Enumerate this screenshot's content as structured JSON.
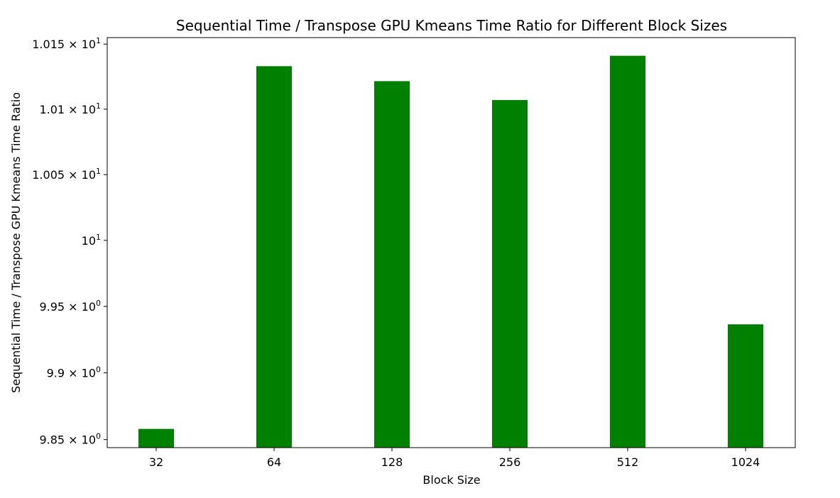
{
  "chart_data": {
    "type": "bar",
    "title": "Sequential Time / Transpose GPU Kmeans Time Ratio for Different Block Sizes",
    "xlabel": "Block Size",
    "ylabel": "Sequential Time / Transpose GPU Kmeans Time Ratio",
    "y_scale": "log",
    "ylim": [
      9.844,
      10.155
    ],
    "categories": [
      "32",
      "64",
      "128",
      "256",
      "512",
      "1024"
    ],
    "values": [
      9.858,
      10.133,
      10.1215,
      10.107,
      10.141,
      9.9365
    ],
    "bar_color": "#008000",
    "grid": false,
    "yticks": [
      {
        "value": 9.85,
        "base": "9.85 × 10",
        "exp": "0"
      },
      {
        "value": 9.9,
        "base": "9.9 × 10",
        "exp": "0"
      },
      {
        "value": 9.95,
        "base": "9.95 × 10",
        "exp": "0"
      },
      {
        "value": 10.0,
        "base": "10",
        "exp": "1"
      },
      {
        "value": 10.05,
        "base": "1.005 × 10",
        "exp": "1"
      },
      {
        "value": 10.1,
        "base": "1.01 × 10",
        "exp": "1"
      },
      {
        "value": 10.15,
        "base": "1.015 × 10",
        "exp": "1"
      }
    ]
  }
}
